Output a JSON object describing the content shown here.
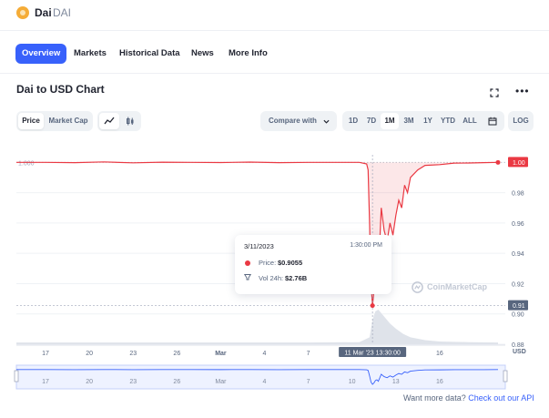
{
  "header": {
    "coin_name": "Dai",
    "coin_symbol": "DAI"
  },
  "nav": {
    "tabs": [
      "Overview",
      "Markets",
      "Historical Data",
      "News",
      "More Info"
    ],
    "active": "Overview"
  },
  "chart_header": {
    "title": "Dai to USD Chart"
  },
  "controls": {
    "type_toggle": [
      "Price",
      "Market Cap"
    ],
    "compare_label": "Compare with",
    "ranges": [
      "1D",
      "7D",
      "1M",
      "3M",
      "1Y",
      "YTD",
      "ALL"
    ],
    "active_range": "1M",
    "log_label": "LOG"
  },
  "tooltip": {
    "date": "3/11/2023",
    "time": "1:30:00 PM",
    "price_label": "Price:",
    "price_value": "$0.9055",
    "vol_label": "Vol 24h:",
    "vol_value": "$2.76B"
  },
  "watermark": "CoinMarketCap",
  "footer": {
    "text": "Want more data?",
    "link": "Check out our API"
  },
  "chart_data": {
    "type": "line",
    "title": "Dai to USD Chart",
    "series": [
      {
        "name": "Price",
        "color": "#ea3943"
      }
    ],
    "x_ticks": [
      "17",
      "20",
      "23",
      "26",
      "Mar",
      "4",
      "7",
      "10",
      "13",
      "16"
    ],
    "x_tick_days": [
      -12,
      -9,
      -6,
      -3,
      0,
      3,
      6,
      9,
      12,
      15
    ],
    "y_ticks": [
      "0.98",
      "0.96",
      "0.94",
      "0.92",
      "0.90",
      "0.88"
    ],
    "y_tick_values": [
      0.98,
      0.96,
      0.94,
      0.92,
      0.9,
      0.88
    ],
    "y_axis_unit": "USD",
    "ylim": [
      0.88,
      1.005
    ],
    "xlim_days": [
      -14,
      19.5
    ],
    "reference_line": {
      "label": "1.000",
      "value": 1.0
    },
    "current_price_label": "1.00",
    "low_price_label": "0.91",
    "crosshair_label": "11 Mar '23  13:30:00",
    "points": [
      [
        -14,
        1.0
      ],
      [
        -12,
        1.0
      ],
      [
        -10,
        0.9998
      ],
      [
        -8,
        1.0003
      ],
      [
        -6,
        0.9997
      ],
      [
        -4,
        1.0001
      ],
      [
        -2,
        1.0
      ],
      [
        0,
        0.9999
      ],
      [
        2,
        1.0002
      ],
      [
        4,
        0.9998
      ],
      [
        6,
        1.0
      ],
      [
        8,
        1.0
      ],
      [
        9.5,
        1.0
      ],
      [
        10.0,
        0.999
      ],
      [
        10.1,
        0.995
      ],
      [
        10.2,
        0.96
      ],
      [
        10.3,
        0.92
      ],
      [
        10.4,
        0.9055
      ],
      [
        10.5,
        0.915
      ],
      [
        10.6,
        0.93
      ],
      [
        10.7,
        0.935
      ],
      [
        10.8,
        0.925
      ],
      [
        11.0,
        0.97
      ],
      [
        11.2,
        0.955
      ],
      [
        11.4,
        0.948
      ],
      [
        11.6,
        0.96
      ],
      [
        11.8,
        0.952
      ],
      [
        12.0,
        0.965
      ],
      [
        12.2,
        0.975
      ],
      [
        12.4,
        0.97
      ],
      [
        12.6,
        0.985
      ],
      [
        12.8,
        0.98
      ],
      [
        13.0,
        0.99
      ],
      [
        13.5,
        0.995
      ],
      [
        14.0,
        0.998
      ],
      [
        15,
        0.9985
      ],
      [
        16,
        0.9995
      ],
      [
        17,
        0.9996
      ],
      [
        18,
        0.9998
      ],
      [
        19,
        1.0
      ]
    ],
    "volume_scale_note": "relative",
    "volume": [
      [
        -14,
        0.05
      ],
      [
        -10,
        0.05
      ],
      [
        -6,
        0.05
      ],
      [
        -2,
        0.05
      ],
      [
        2,
        0.05
      ],
      [
        6,
        0.05
      ],
      [
        9.5,
        0.06
      ],
      [
        10.2,
        0.2
      ],
      [
        10.4,
        0.7
      ],
      [
        10.6,
        0.95
      ],
      [
        10.8,
        1.0
      ],
      [
        11.2,
        0.8
      ],
      [
        11.6,
        0.6
      ],
      [
        12.0,
        0.45
      ],
      [
        12.5,
        0.3
      ],
      [
        13.0,
        0.2
      ],
      [
        14,
        0.12
      ],
      [
        15,
        0.08
      ],
      [
        17,
        0.06
      ],
      [
        19,
        0.05
      ]
    ]
  }
}
